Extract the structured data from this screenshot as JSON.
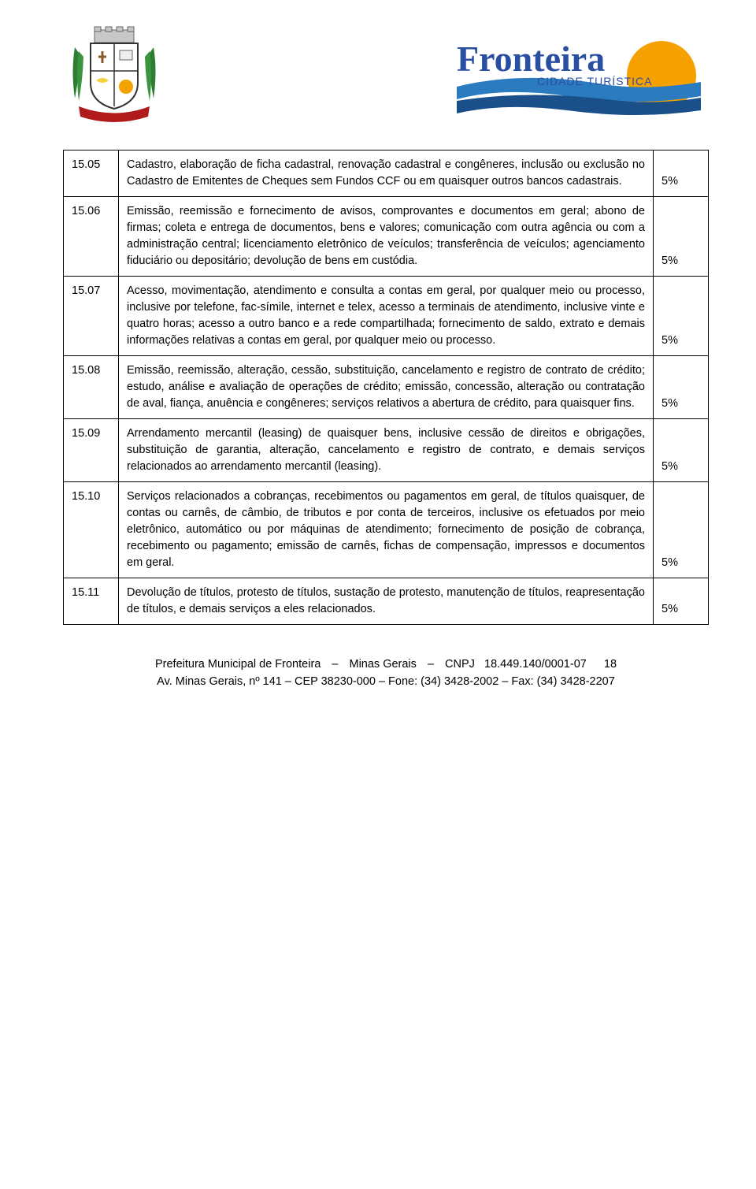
{
  "header": {
    "brand_main": "Fronteira",
    "brand_sub": "CIDADE TURÍSTICA",
    "brand_color_main": "#2a4fa2",
    "brand_color_sub": "#2a4fa2",
    "sun_color": "#f5a100",
    "wave_top": "#2a7bbf",
    "wave_bottom": "#1a4f8a",
    "crest_ribbon": "#b11a1a",
    "crest_shield_bg": "#ffffff",
    "crest_shield_border": "#333333",
    "crest_plant": "#2e7d32"
  },
  "table": {
    "border_color": "#000000",
    "rows": [
      {
        "code": "15.05",
        "desc": "Cadastro, elaboração de ficha cadastral, renovação cadastral e congêneres, inclusão ou exclusão no Cadastro de Emitentes de Cheques sem Fundos CCF ou em quaisquer outros bancos cadastrais.",
        "rate": "5%"
      },
      {
        "code": "15.06",
        "desc": "Emissão, reemissão e fornecimento de avisos, comprovantes e documentos em geral; abono de firmas; coleta e entrega de documentos, bens e valores; comunicação com outra agência ou com a administração central; licenciamento eletrônico de veículos; transferência de veículos; agenciamento fiduciário ou depositário; devolução de bens em custódia.",
        "rate": "5%"
      },
      {
        "code": "15.07",
        "desc": "Acesso, movimentação, atendimento e consulta a contas em geral, por qualquer meio ou processo, inclusive por telefone, fac-símile, internet e telex, acesso a terminais de atendimento, inclusive vinte e quatro horas; acesso a outro banco e a rede compartilhada; fornecimento de saldo, extrato e demais informações relativas a contas em geral, por qualquer meio ou processo.",
        "rate": "5%"
      },
      {
        "code": "15.08",
        "desc": "Emissão, reemissão, alteração, cessão, substituição, cancelamento e registro de contrato de crédito; estudo, análise e avaliação de operações de crédito; emissão, concessão, alteração ou contratação de aval, fiança, anuência e congêneres; serviços relativos a abertura de crédito, para quaisquer fins.",
        "rate": "5%"
      },
      {
        "code": "15.09",
        "desc": "Arrendamento mercantil (leasing) de quaisquer bens, inclusive cessão de direitos e obrigações, substituição de garantia, alteração, cancelamento e registro de contrato, e demais serviços relacionados ao arrendamento mercantil (leasing).",
        "rate": "5%"
      },
      {
        "code": "15.10",
        "desc": "Serviços relacionados a cobranças, recebimentos ou pagamentos em geral, de títulos quaisquer, de contas ou carnês, de câmbio, de tributos e por conta de terceiros, inclusive os efetuados por meio eletrônico, automático ou por máquinas de atendimento; fornecimento de posição de cobrança, recebimento ou pagamento; emissão de carnês, fichas de compensação, impressos e documentos em geral.",
        "rate": "5%"
      },
      {
        "code": "15.11",
        "desc": "Devolução de títulos, protesto de títulos, sustação de protesto, manutenção de títulos, reapresentação de títulos, e demais serviços a eles relacionados.",
        "rate": "5%"
      }
    ]
  },
  "footer": {
    "org": "Prefeitura Municipal de Fronteira",
    "state": "Minas Gerais",
    "cnpj_label": "CNPJ",
    "cnpj": "18.449.140/0001-07",
    "address": "Av. Minas Gerais, nº 141 – CEP 38230-000 – Fone: (34) 3428-2002 – Fax: (34) 3428-2207",
    "page_number": "18"
  }
}
